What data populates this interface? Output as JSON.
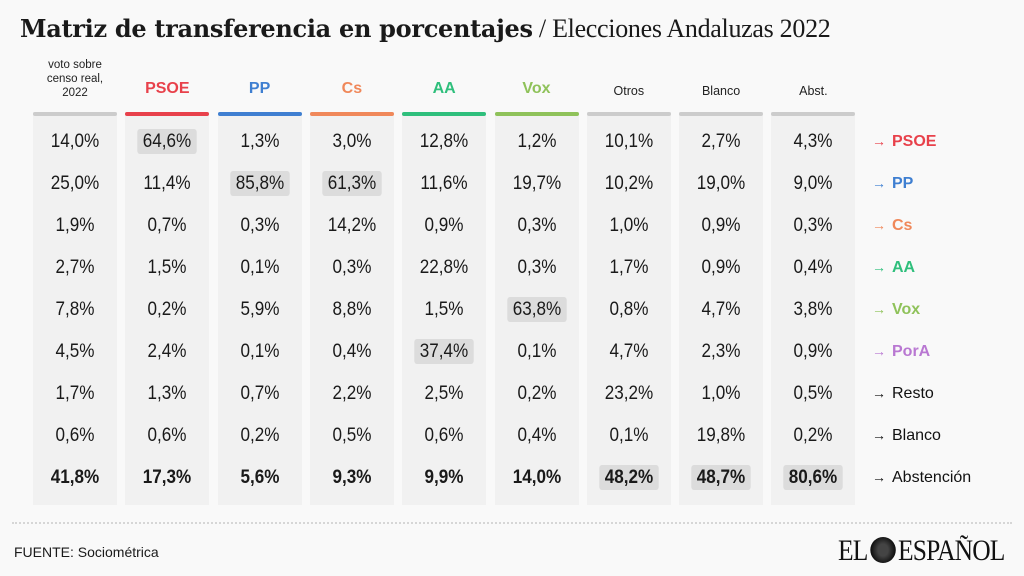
{
  "title": {
    "main": "Matriz de transferencia en porcentajes",
    "separator": " / ",
    "sub": "Elecciones Andaluzas 2022"
  },
  "source": "FUENTE: Sociométrica",
  "logo": {
    "left": "EL",
    "right": "ESPAÑOL"
  },
  "chart_data": {
    "type": "table",
    "columns": [
      {
        "label": "voto sobre censo real, 2022",
        "color": "#cccccc",
        "style": "first"
      },
      {
        "label": "PSOE",
        "color": "#e8414b",
        "style": "party"
      },
      {
        "label": "PP",
        "color": "#3f7fd1",
        "style": "party"
      },
      {
        "label": "Cs",
        "color": "#f0885a",
        "style": "party"
      },
      {
        "label": "AA",
        "color": "#2fbf7c",
        "style": "party"
      },
      {
        "label": "Vox",
        "color": "#8fc25a",
        "style": "party"
      },
      {
        "label": "Otros",
        "color": "#cccccc",
        "style": "small"
      },
      {
        "label": "Blanco",
        "color": "#cccccc",
        "style": "small"
      },
      {
        "label": "Abst.",
        "color": "#cccccc",
        "style": "small"
      }
    ],
    "rows": [
      {
        "label": "PSOE",
        "color": "#e8414b",
        "values": [
          "14,0%",
          "64,6%",
          "1,3%",
          "3,0%",
          "12,8%",
          "1,2%",
          "10,1%",
          "2,7%",
          "4,3%"
        ],
        "highlight": [
          1
        ]
      },
      {
        "label": "PP",
        "color": "#3f7fd1",
        "values": [
          "25,0%",
          "11,4%",
          "85,8%",
          "61,3%",
          "11,6%",
          "19,7%",
          "10,2%",
          "19,0%",
          "9,0%"
        ],
        "highlight": [
          2,
          3
        ]
      },
      {
        "label": "Cs",
        "color": "#f0885a",
        "values": [
          "1,9%",
          "0,7%",
          "0,3%",
          "14,2%",
          "0,9%",
          "0,3%",
          "1,0%",
          "0,9%",
          "0,3%"
        ],
        "highlight": []
      },
      {
        "label": "AA",
        "color": "#2fbf7c",
        "values": [
          "2,7%",
          "1,5%",
          "0,1%",
          "0,3%",
          "22,8%",
          "0,3%",
          "1,7%",
          "0,9%",
          "0,4%"
        ],
        "highlight": []
      },
      {
        "label": "Vox",
        "color": "#8fc25a",
        "values": [
          "7,8%",
          "0,2%",
          "5,9%",
          "8,8%",
          "1,5%",
          "63,8%",
          "0,8%",
          "4,7%",
          "3,8%"
        ],
        "highlight": [
          5
        ]
      },
      {
        "label": "PorA",
        "color": "#b978d2",
        "values": [
          "4,5%",
          "2,4%",
          "0,1%",
          "0,4%",
          "37,4%",
          "0,1%",
          "4,7%",
          "2,3%",
          "0,9%"
        ],
        "highlight": [
          4
        ]
      },
      {
        "label": "Resto",
        "color": "#111111",
        "values": [
          "1,7%",
          "1,3%",
          "0,7%",
          "2,2%",
          "2,5%",
          "0,2%",
          "23,2%",
          "1,0%",
          "0,5%"
        ],
        "highlight": []
      },
      {
        "label": "Blanco",
        "color": "#111111",
        "values": [
          "0,6%",
          "0,6%",
          "0,2%",
          "0,5%",
          "0,6%",
          "0,4%",
          "0,1%",
          "19,8%",
          "0,2%"
        ],
        "highlight": []
      },
      {
        "label": "Abstención",
        "color": "#111111",
        "values": [
          "41,8%",
          "17,3%",
          "5,6%",
          "9,3%",
          "9,9%",
          "14,0%",
          "48,2%",
          "48,7%",
          "80,6%"
        ],
        "highlight": [
          6,
          7,
          8
        ],
        "bold": true
      }
    ],
    "arrow": "→"
  }
}
